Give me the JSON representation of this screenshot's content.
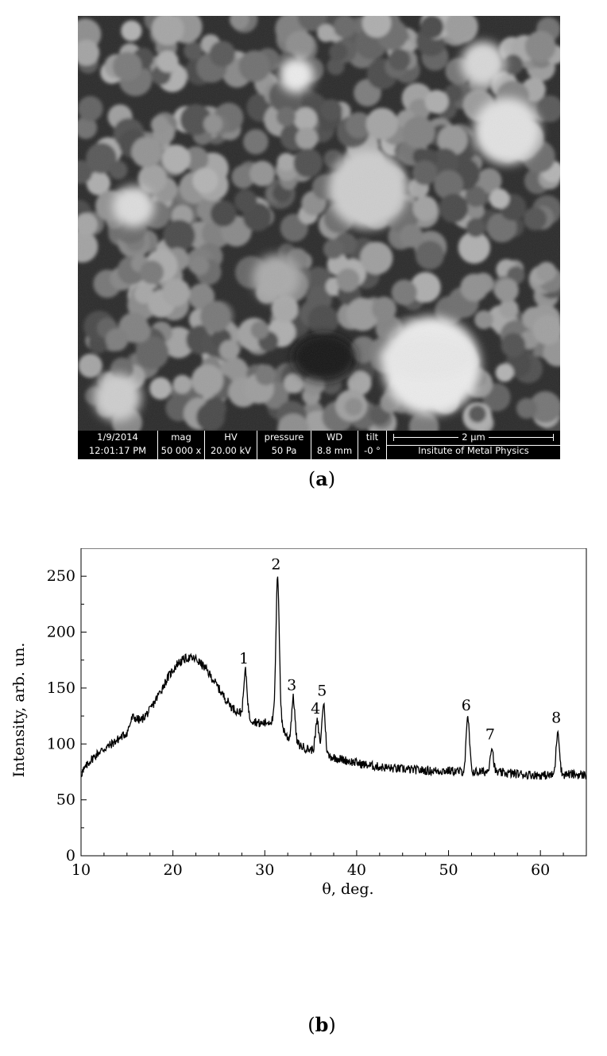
{
  "panel_a": {
    "caption_open": "(",
    "caption_letter": "a",
    "caption_close": ")",
    "databar": {
      "date": "1/9/2014",
      "time": "12:01:17 PM",
      "mag_label": "mag",
      "mag_value": "50 000 x",
      "hv_label": "HV",
      "hv_value": "20.00 kV",
      "pressure_label": "pressure",
      "pressure_value": "50 Pa",
      "wd_label": "WD",
      "wd_value": "8.8 mm",
      "tilt_label": "tilt",
      "tilt_value": "-0 °",
      "scale_label": "2 μm",
      "institute": "Insitute of Metal Physics"
    }
  },
  "panel_b": {
    "caption_open": "(",
    "caption_letter": "b",
    "caption_close": ")"
  },
  "chart_data": {
    "type": "line",
    "xlabel": "θ, deg.",
    "ylabel": "Intensity, arb. un.",
    "xlim": [
      10,
      65
    ],
    "ylim": [
      0,
      275
    ],
    "xticks": [
      10,
      20,
      30,
      40,
      50,
      60
    ],
    "yticks": [
      0,
      50,
      100,
      150,
      200,
      250
    ],
    "grid": false,
    "anchors": [
      [
        10,
        73
      ],
      [
        11,
        85
      ],
      [
        12,
        93
      ],
      [
        13,
        98
      ],
      [
        14,
        104
      ],
      [
        15,
        110
      ],
      [
        15.6,
        124
      ],
      [
        16.5,
        121
      ],
      [
        17.5,
        130
      ],
      [
        18.5,
        145
      ],
      [
        19.5,
        160
      ],
      [
        20.5,
        172
      ],
      [
        21.5,
        177
      ],
      [
        22.5,
        176
      ],
      [
        23.5,
        168
      ],
      [
        24.5,
        156
      ],
      [
        25.5,
        143
      ],
      [
        26.5,
        132
      ],
      [
        27.5,
        127
      ],
      [
        28.5,
        122
      ],
      [
        29.5,
        118
      ],
      [
        30.5,
        120
      ],
      [
        31.5,
        123
      ],
      [
        32.5,
        105
      ],
      [
        33.5,
        100
      ],
      [
        34.5,
        96
      ],
      [
        35.5,
        94
      ],
      [
        36.5,
        90
      ],
      [
        37.5,
        88
      ],
      [
        38.5,
        86
      ],
      [
        39.5,
        84
      ],
      [
        40.5,
        82
      ],
      [
        42,
        80
      ],
      [
        44,
        78
      ],
      [
        46,
        77
      ],
      [
        48,
        76
      ],
      [
        50,
        76
      ],
      [
        52,
        75
      ],
      [
        54,
        75
      ],
      [
        56,
        74
      ],
      [
        58,
        73
      ],
      [
        60,
        72
      ],
      [
        62,
        72
      ],
      [
        63,
        73
      ],
      [
        65,
        72
      ]
    ],
    "peaks": [
      {
        "label": "1",
        "x": 27.9,
        "y": 165
      },
      {
        "label": "2",
        "x": 31.4,
        "y": 249
      },
      {
        "label": "3",
        "x": 33.1,
        "y": 141
      },
      {
        "label": "4",
        "x": 35.7,
        "y": 120
      },
      {
        "label": "5",
        "x": 36.4,
        "y": 136
      },
      {
        "label": "6",
        "x": 52.1,
        "y": 123
      },
      {
        "label": "7",
        "x": 54.7,
        "y": 97
      },
      {
        "label": "8",
        "x": 61.9,
        "y": 112
      }
    ],
    "noise_amplitude": 4
  },
  "colors": {
    "axes": "#000000",
    "line": "#000000",
    "background": "#ffffff"
  }
}
